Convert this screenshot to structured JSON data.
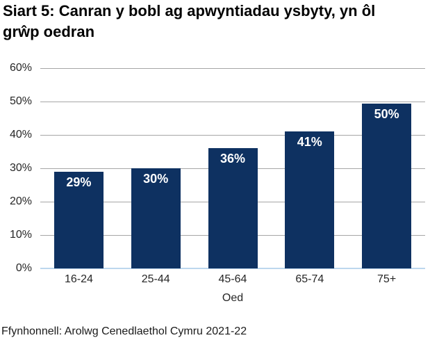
{
  "title": {
    "lines": [
      "Siart 5: Canran y bobl ag apwyntiadau ysbyty, yn ôl",
      "grŵp oedran"
    ]
  },
  "chart_data": {
    "type": "bar",
    "title": "Siart 5: Canran y bobl ag apwyntiadau ysbyty, yn ôl grŵp oedran",
    "categories": [
      "16-24",
      "25-44",
      "45-64",
      "65-74",
      "75+"
    ],
    "values": [
      29,
      30,
      36,
      41,
      50
    ],
    "bar_labels": [
      "29%",
      "30%",
      "36%",
      "41%",
      "50%"
    ],
    "display_values": [
      29,
      30,
      36,
      41,
      49.4
    ],
    "xlabel": "Oed",
    "ylabel": "",
    "ylim": [
      0,
      60
    ],
    "ytick_values": [
      0,
      10,
      20,
      30,
      40,
      50,
      60
    ],
    "ytick_labels": [
      "0%",
      "10%",
      "20%",
      "30%",
      "40%",
      "50%",
      "60%"
    ],
    "grid": true,
    "legend_position": "none",
    "bar_color": "#0e3161",
    "bar_label_color": "#ffffff",
    "gridline_color": "#a6a6a6",
    "baseline_color": "#bdd7ee"
  },
  "source": "Ffynhonnell: Arolwg Cenedlaethol Cymru 2021-22"
}
